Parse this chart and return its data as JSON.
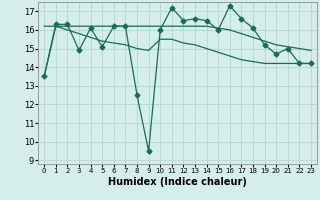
{
  "xlabel": "Humidex (Indice chaleur)",
  "background_color": "#d6eeea",
  "grid_color": "#b8d8d0",
  "line_color": "#1a6b5a",
  "xlim": [
    -0.5,
    23.5
  ],
  "ylim": [
    8.8,
    17.5
  ],
  "yticks": [
    9,
    10,
    11,
    12,
    13,
    14,
    15,
    16,
    17
  ],
  "xticks": [
    0,
    1,
    2,
    3,
    4,
    5,
    6,
    7,
    8,
    9,
    10,
    11,
    12,
    13,
    14,
    15,
    16,
    17,
    18,
    19,
    20,
    21,
    22,
    23
  ],
  "line1": [
    13.5,
    16.3,
    16.3,
    14.9,
    16.1,
    15.1,
    16.2,
    16.2,
    12.5,
    9.5,
    16.0,
    17.2,
    16.5,
    16.6,
    16.5,
    16.0,
    17.3,
    16.6,
    16.1,
    15.2,
    14.7,
    15.0,
    14.2,
    14.2
  ],
  "line2": [
    16.2,
    16.2,
    16.2,
    16.2,
    16.2,
    16.2,
    16.2,
    16.2,
    16.2,
    16.2,
    16.2,
    16.2,
    16.2,
    16.2,
    16.2,
    16.1,
    16.0,
    15.8,
    15.6,
    15.4,
    15.2,
    15.1,
    15.0,
    14.9
  ],
  "line3": [
    13.5,
    16.2,
    16.0,
    15.8,
    15.6,
    15.4,
    15.3,
    15.2,
    15.0,
    14.9,
    15.5,
    15.5,
    15.3,
    15.2,
    15.0,
    14.8,
    14.6,
    14.4,
    14.3,
    14.2,
    14.2,
    14.2,
    14.2,
    14.2
  ]
}
